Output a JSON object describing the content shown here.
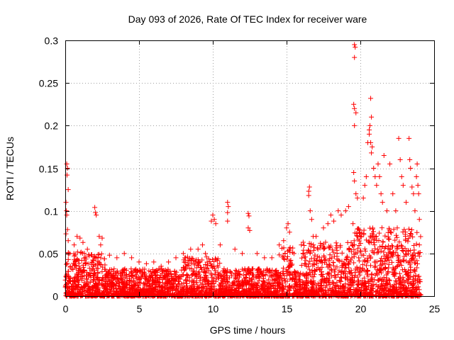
{
  "chart_data": {
    "type": "scatter",
    "title": "Day 093 of 2026, Rate Of TEC Index for receiver ware",
    "xlabel": "GPS time / hours",
    "ylabel": "ROTI / TECUs",
    "xlim": [
      0,
      25
    ],
    "ylim": [
      0,
      0.3
    ],
    "xticks": [
      0,
      5,
      10,
      15,
      20,
      25
    ],
    "yticks": [
      0,
      0.05,
      0.1,
      0.15,
      0.2,
      0.25,
      0.3
    ],
    "xtick_labels": [
      "0",
      "5",
      "10",
      "15",
      "20",
      "25"
    ],
    "ytick_labels": [
      "0",
      "0.05",
      "0.1",
      "0.15",
      "0.2",
      "0.25",
      "0.3"
    ],
    "grid": true,
    "marker": "+",
    "color": "#ff0000",
    "series": [
      {
        "name": "ROTI",
        "points": [
          [
            0.1,
            0.155
          ],
          [
            0.15,
            0.15
          ],
          [
            0.12,
            0.142
          ],
          [
            0.2,
            0.125
          ],
          [
            0.05,
            0.11
          ],
          [
            0.08,
            0.1
          ],
          [
            0.1,
            0.095
          ],
          [
            0.15,
            0.078
          ],
          [
            0.05,
            0.073
          ],
          [
            0.2,
            0.065
          ],
          [
            0.3,
            0.05
          ],
          [
            0.6,
            0.06
          ],
          [
            0.8,
            0.07
          ],
          [
            1.0,
            0.068
          ],
          [
            1.2,
            0.063
          ],
          [
            1.5,
            0.055
          ],
          [
            2.0,
            0.104
          ],
          [
            2.05,
            0.098
          ],
          [
            2.1,
            0.095
          ],
          [
            2.3,
            0.07
          ],
          [
            2.5,
            0.068
          ],
          [
            2.4,
            0.06
          ],
          [
            3.0,
            0.048
          ],
          [
            3.5,
            0.045
          ],
          [
            4.0,
            0.05
          ],
          [
            4.5,
            0.045
          ],
          [
            5.0,
            0.04
          ],
          [
            5.5,
            0.038
          ],
          [
            6.0,
            0.04
          ],
          [
            6.5,
            0.035
          ],
          [
            7.0,
            0.04
          ],
          [
            7.5,
            0.045
          ],
          [
            8.0,
            0.05
          ],
          [
            8.5,
            0.055
          ],
          [
            9.0,
            0.055
          ],
          [
            9.3,
            0.06
          ],
          [
            9.5,
            0.05
          ],
          [
            10.0,
            0.095
          ],
          [
            10.1,
            0.09
          ],
          [
            10.2,
            0.085
          ],
          [
            9.9,
            0.088
          ],
          [
            10.5,
            0.06
          ],
          [
            11.0,
            0.11
          ],
          [
            11.05,
            0.105
          ],
          [
            11.0,
            0.098
          ],
          [
            11.0,
            0.088
          ],
          [
            11.5,
            0.055
          ],
          [
            12.0,
            0.05
          ],
          [
            12.4,
            0.097
          ],
          [
            12.45,
            0.094
          ],
          [
            12.4,
            0.08
          ],
          [
            12.5,
            0.077
          ],
          [
            13.0,
            0.05
          ],
          [
            13.5,
            0.045
          ],
          [
            14.0,
            0.045
          ],
          [
            14.5,
            0.06
          ],
          [
            14.8,
            0.065
          ],
          [
            15.0,
            0.08
          ],
          [
            15.1,
            0.085
          ],
          [
            15.2,
            0.075
          ],
          [
            15.5,
            0.05
          ],
          [
            16.0,
            0.06
          ],
          [
            16.5,
            0.123
          ],
          [
            16.55,
            0.128
          ],
          [
            16.5,
            0.118
          ],
          [
            16.6,
            0.1
          ],
          [
            16.7,
            0.09
          ],
          [
            16.8,
            0.07
          ],
          [
            17.0,
            0.07
          ],
          [
            17.5,
            0.08
          ],
          [
            17.8,
            0.085
          ],
          [
            18.0,
            0.095
          ],
          [
            18.2,
            0.088
          ],
          [
            18.5,
            0.1
          ],
          [
            18.7,
            0.095
          ],
          [
            19.0,
            0.1
          ],
          [
            19.2,
            0.105
          ],
          [
            19.5,
            0.085
          ],
          [
            19.6,
            0.295
          ],
          [
            19.65,
            0.292
          ],
          [
            19.6,
            0.28
          ],
          [
            19.55,
            0.225
          ],
          [
            19.6,
            0.22
          ],
          [
            19.7,
            0.215
          ],
          [
            19.6,
            0.2
          ],
          [
            19.55,
            0.145
          ],
          [
            19.6,
            0.135
          ],
          [
            19.7,
            0.12
          ],
          [
            19.8,
            0.115
          ],
          [
            19.8,
            0.07
          ],
          [
            20.0,
            0.07
          ],
          [
            20.2,
            0.115
          ],
          [
            20.3,
            0.13
          ],
          [
            20.4,
            0.14
          ],
          [
            20.5,
            0.18
          ],
          [
            20.6,
            0.195
          ],
          [
            20.65,
            0.2
          ],
          [
            20.7,
            0.18
          ],
          [
            20.75,
            0.168
          ],
          [
            20.7,
            0.232
          ],
          [
            20.75,
            0.21
          ],
          [
            20.6,
            0.19
          ],
          [
            20.8,
            0.175
          ],
          [
            20.9,
            0.15
          ],
          [
            21.0,
            0.14
          ],
          [
            21.1,
            0.13
          ],
          [
            21.2,
            0.155
          ],
          [
            21.3,
            0.14
          ],
          [
            21.4,
            0.12
          ],
          [
            21.5,
            0.11
          ],
          [
            21.6,
            0.165
          ],
          [
            21.8,
            0.1
          ],
          [
            22.0,
            0.155
          ],
          [
            22.2,
            0.12
          ],
          [
            22.4,
            0.1
          ],
          [
            22.5,
            0.08
          ],
          [
            22.6,
            0.185
          ],
          [
            22.7,
            0.16
          ],
          [
            22.8,
            0.14
          ],
          [
            22.9,
            0.13
          ],
          [
            23.1,
            0.11
          ],
          [
            23.3,
            0.185
          ],
          [
            23.35,
            0.16
          ],
          [
            23.4,
            0.15
          ],
          [
            23.5,
            0.128
          ],
          [
            23.6,
            0.12
          ],
          [
            23.7,
            0.1
          ],
          [
            23.8,
            0.14
          ],
          [
            23.85,
            0.155
          ],
          [
            23.9,
            0.13
          ],
          [
            23.95,
            0.12
          ],
          [
            24.0,
            0.09
          ],
          [
            24.0,
            0.06
          ],
          [
            23.9,
            0.05
          ]
        ]
      }
    ]
  }
}
